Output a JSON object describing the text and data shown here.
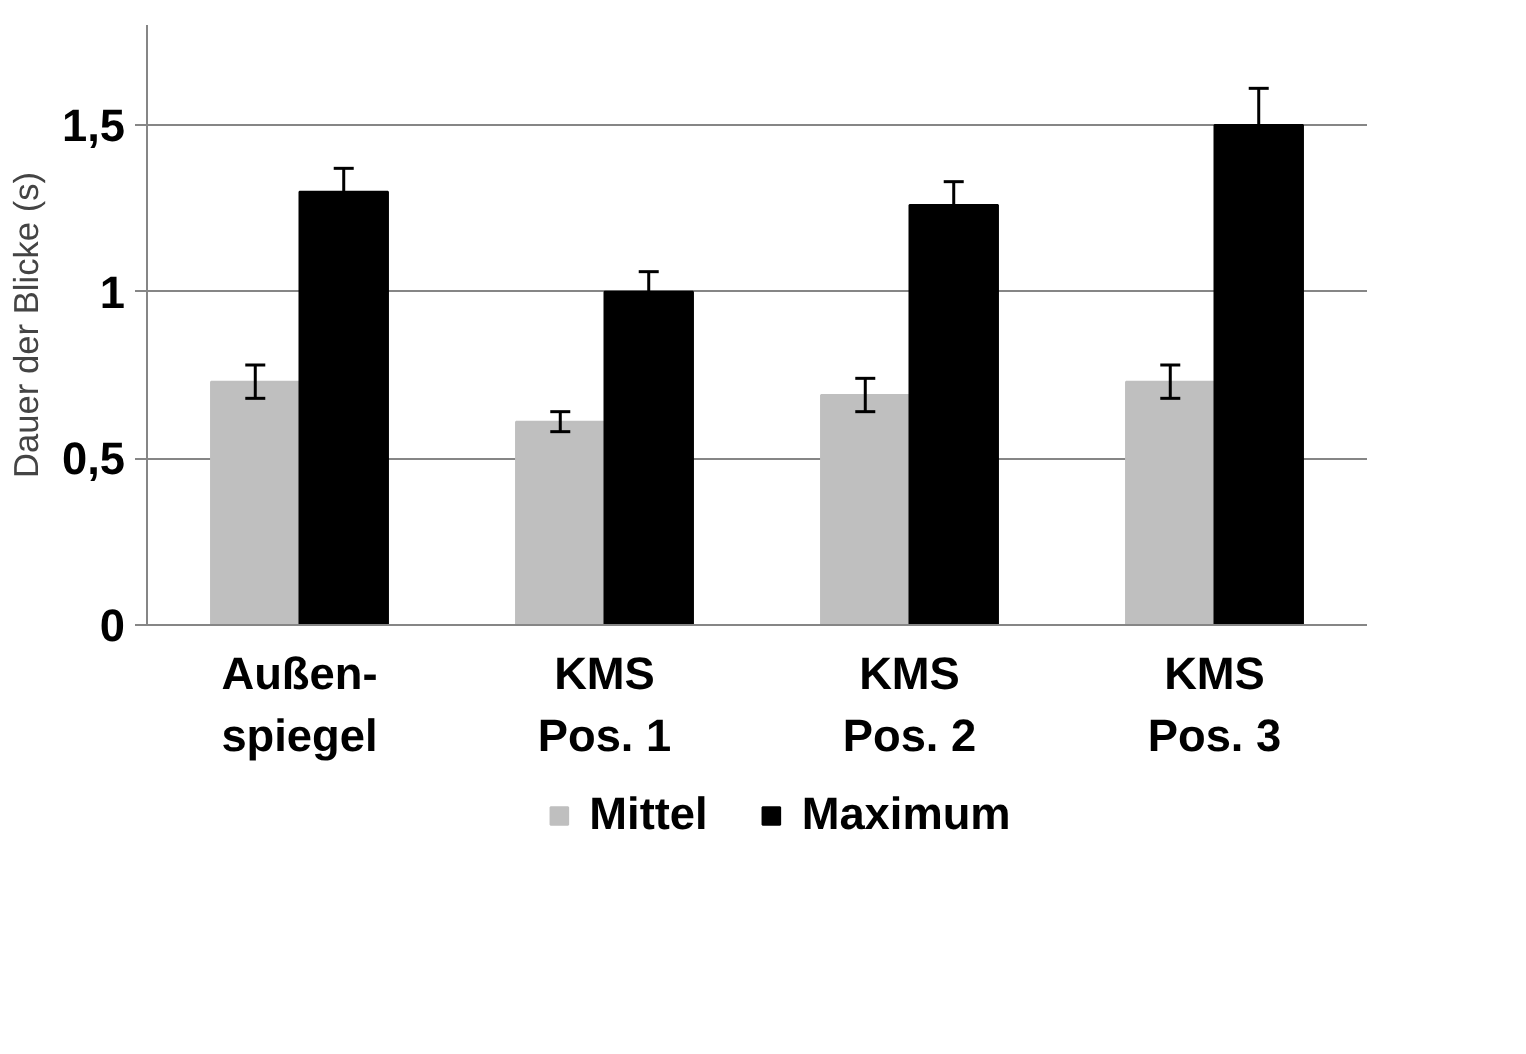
{
  "chart_data": {
    "type": "bar",
    "ylabel": "Dauer der Blicke (s)",
    "categories": [
      "Außen-\nspiegel",
      "KMS\nPos. 1",
      "KMS\nPos. 2",
      "KMS\nPos. 3"
    ],
    "series": [
      {
        "name": "Mittel",
        "color": "#bfbfbf",
        "values": [
          0.73,
          0.61,
          0.69,
          0.73
        ],
        "errors": [
          0.05,
          0.03,
          0.05,
          0.05
        ]
      },
      {
        "name": "Maximum",
        "color": "#000000",
        "values": [
          1.3,
          1.0,
          1.26,
          1.5
        ],
        "errors": [
          0.07,
          0.06,
          0.07,
          0.11
        ]
      }
    ],
    "ylim": [
      0,
      1.8
    ],
    "yticks": [
      0,
      {
        "value": 0.5,
        "label": "0,5"
      },
      1,
      {
        "value": 1.5,
        "label": "1,5"
      }
    ],
    "grid": "y",
    "legend": "bottom"
  }
}
